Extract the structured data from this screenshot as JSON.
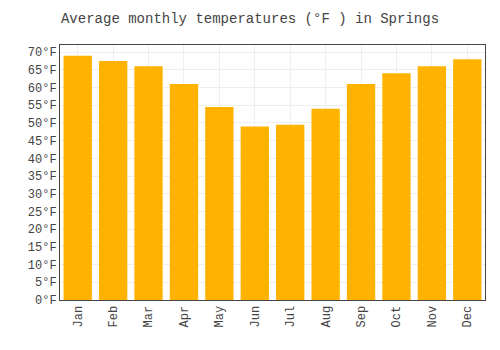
{
  "chart_data": {
    "type": "bar",
    "title": "Average monthly temperatures (°F ) in Springs",
    "categories": [
      "Jan",
      "Feb",
      "Mar",
      "Apr",
      "May",
      "Jun",
      "Jul",
      "Aug",
      "Sep",
      "Oct",
      "Nov",
      "Dec"
    ],
    "values": [
      69,
      67.5,
      66,
      61,
      54.5,
      49,
      49.5,
      54,
      61,
      64,
      66,
      68
    ],
    "color": "#FFB300",
    "ylim": [
      0,
      72
    ],
    "yticks": [
      {
        "value": 0,
        "label": "0°F"
      },
      {
        "value": 5,
        "label": "5°F"
      },
      {
        "value": 10,
        "label": "10°F"
      },
      {
        "value": 15,
        "label": "15°F"
      },
      {
        "value": 20,
        "label": "20°F"
      },
      {
        "value": 25,
        "label": "25°F"
      },
      {
        "value": 30,
        "label": "30°F"
      },
      {
        "value": 35,
        "label": "35°F"
      },
      {
        "value": 40,
        "label": "40°F"
      },
      {
        "value": 45,
        "label": "45°F"
      },
      {
        "value": 50,
        "label": "50°F"
      },
      {
        "value": 55,
        "label": "55°F"
      },
      {
        "value": 60,
        "label": "60°F"
      },
      {
        "value": 65,
        "label": "65°F"
      },
      {
        "value": 70,
        "label": "70°F"
      }
    ],
    "grid": true
  }
}
